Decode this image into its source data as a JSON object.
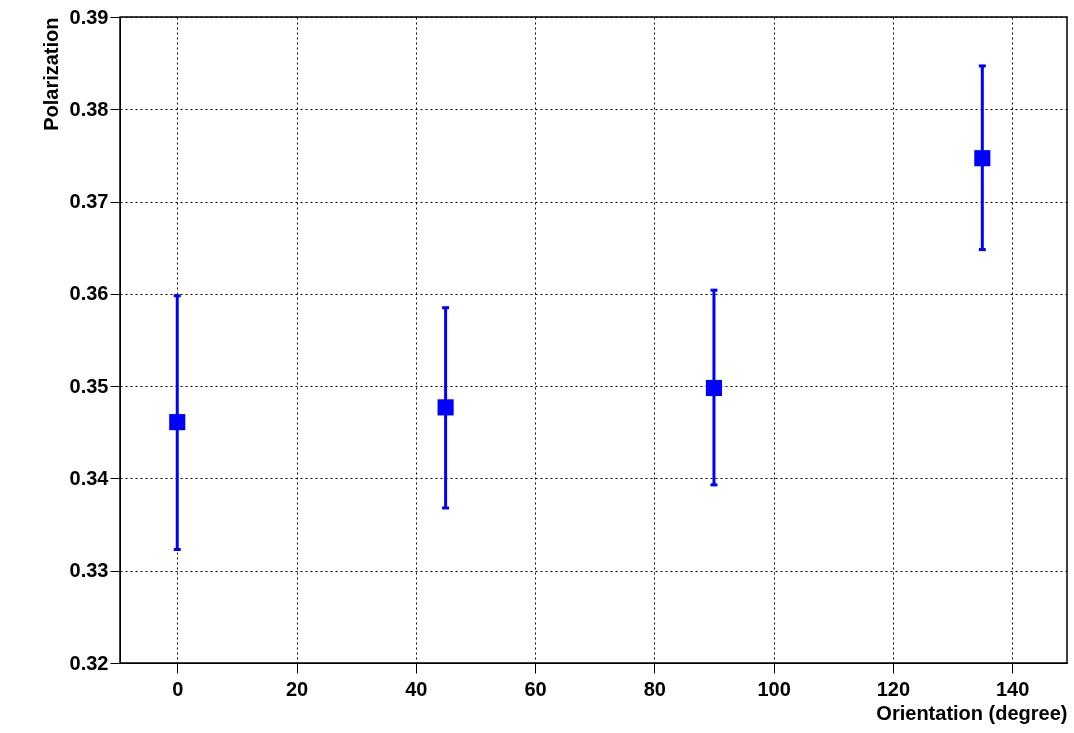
{
  "chart_data": {
    "type": "scatter",
    "xlabel": "Orientation (degree)",
    "ylabel": "Polarization",
    "x": [
      0,
      45,
      90,
      135
    ],
    "series": [
      {
        "color": "#0000ff",
        "values": [
          0.3461,
          0.3477,
          0.3498,
          0.3747
        ],
        "errors": [
          [
            0.3323,
            0.3598
          ],
          [
            0.3368,
            0.3585
          ],
          [
            0.3393,
            0.3604
          ],
          [
            0.3648,
            0.3847
          ]
        ]
      }
    ],
    "xlim": [
      -9.6,
      149.2
    ],
    "xticks": [
      0,
      20,
      40,
      60,
      80,
      100,
      120,
      140
    ],
    "ylim": [
      0.32,
      0.39
    ],
    "yticks": [
      0.32,
      0.33,
      0.34,
      0.35,
      0.36,
      0.37,
      0.38,
      0.39
    ],
    "grid": true,
    "marker": "square"
  }
}
